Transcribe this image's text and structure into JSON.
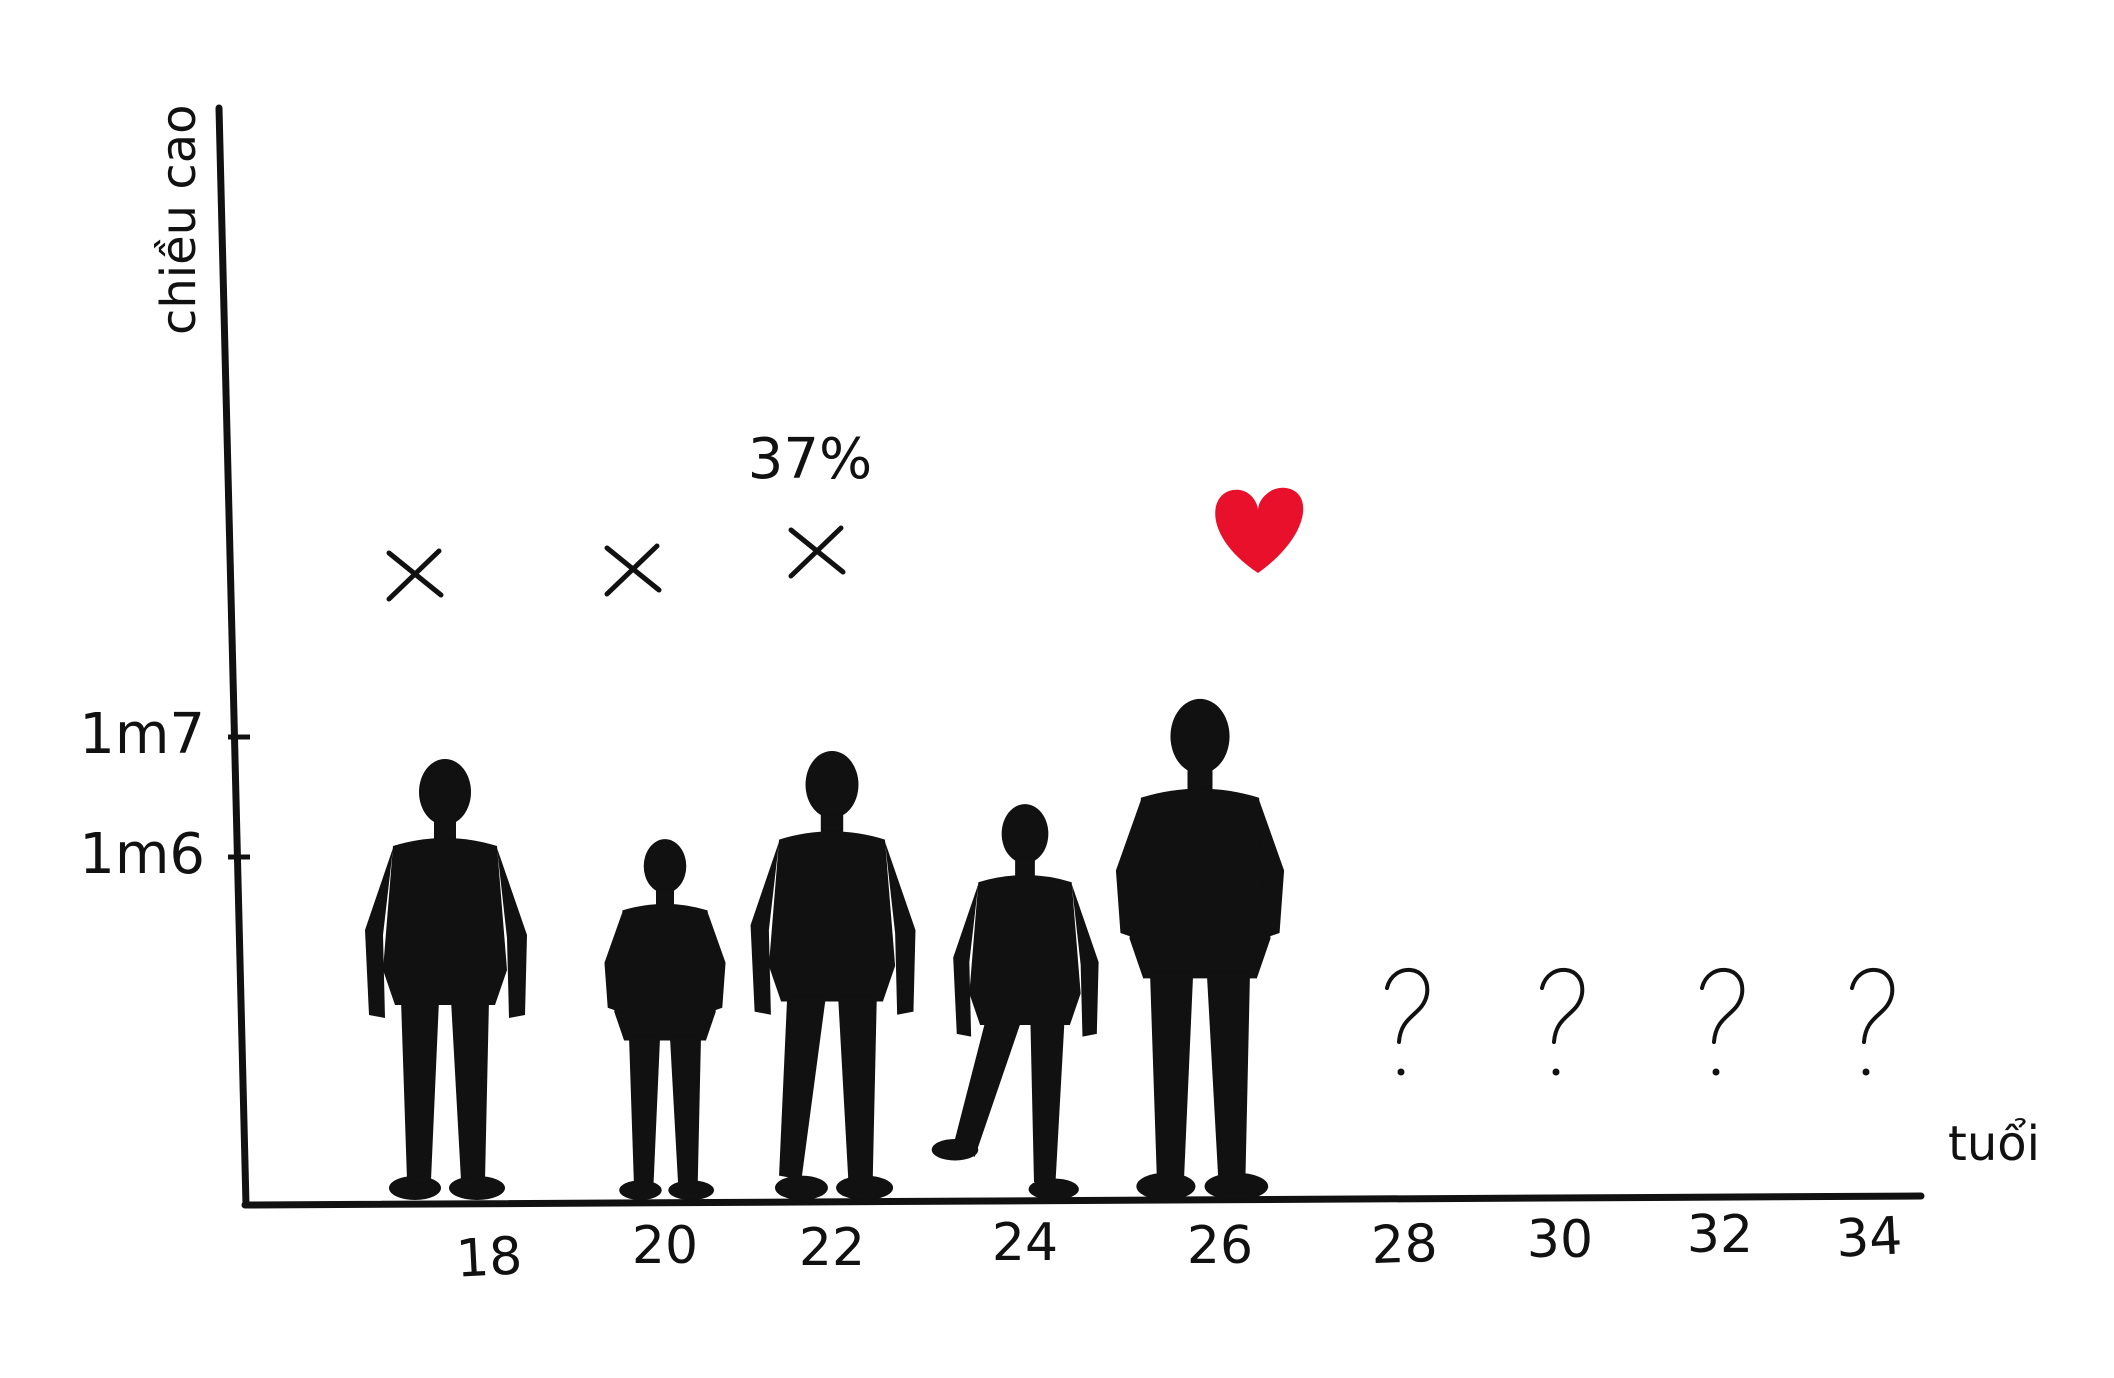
{
  "chart_data": {
    "type": "scatter",
    "title": "",
    "xlabel": "tuổi",
    "ylabel": "chiều cao",
    "x_ticks": [
      "18",
      "20",
      "22",
      "24",
      "26",
      "28",
      "30",
      "32",
      "34"
    ],
    "y_ticks": [
      "1m6",
      "1m7"
    ],
    "annotation": "37%",
    "grid": false,
    "legend": "none",
    "points": [
      {
        "age": "18",
        "height": "1m6",
        "mark": "cross",
        "silhouette": true,
        "pose": "looking-up"
      },
      {
        "age": "20",
        "height": "",
        "mark": "cross",
        "silhouette": true,
        "pose": "hands-in-pockets"
      },
      {
        "age": "22",
        "height": "1m6",
        "mark": "cross",
        "silhouette": true,
        "pose": "walking"
      },
      {
        "age": "24",
        "height": "",
        "mark": "none",
        "silhouette": true,
        "pose": "striding"
      },
      {
        "age": "26",
        "height": "1m7",
        "mark": "heart",
        "silhouette": true,
        "pose": "hands-in-pockets"
      },
      {
        "age": "28",
        "height": "",
        "mark": "question",
        "silhouette": false
      },
      {
        "age": "30",
        "height": "",
        "mark": "question",
        "silhouette": false
      },
      {
        "age": "32",
        "height": "",
        "mark": "question",
        "silhouette": false
      },
      {
        "age": "34",
        "height": "",
        "mark": "question",
        "silhouette": false
      }
    ],
    "colors": {
      "ink": "#111111",
      "heart": "#e8102a",
      "background": "#ffffff"
    }
  }
}
